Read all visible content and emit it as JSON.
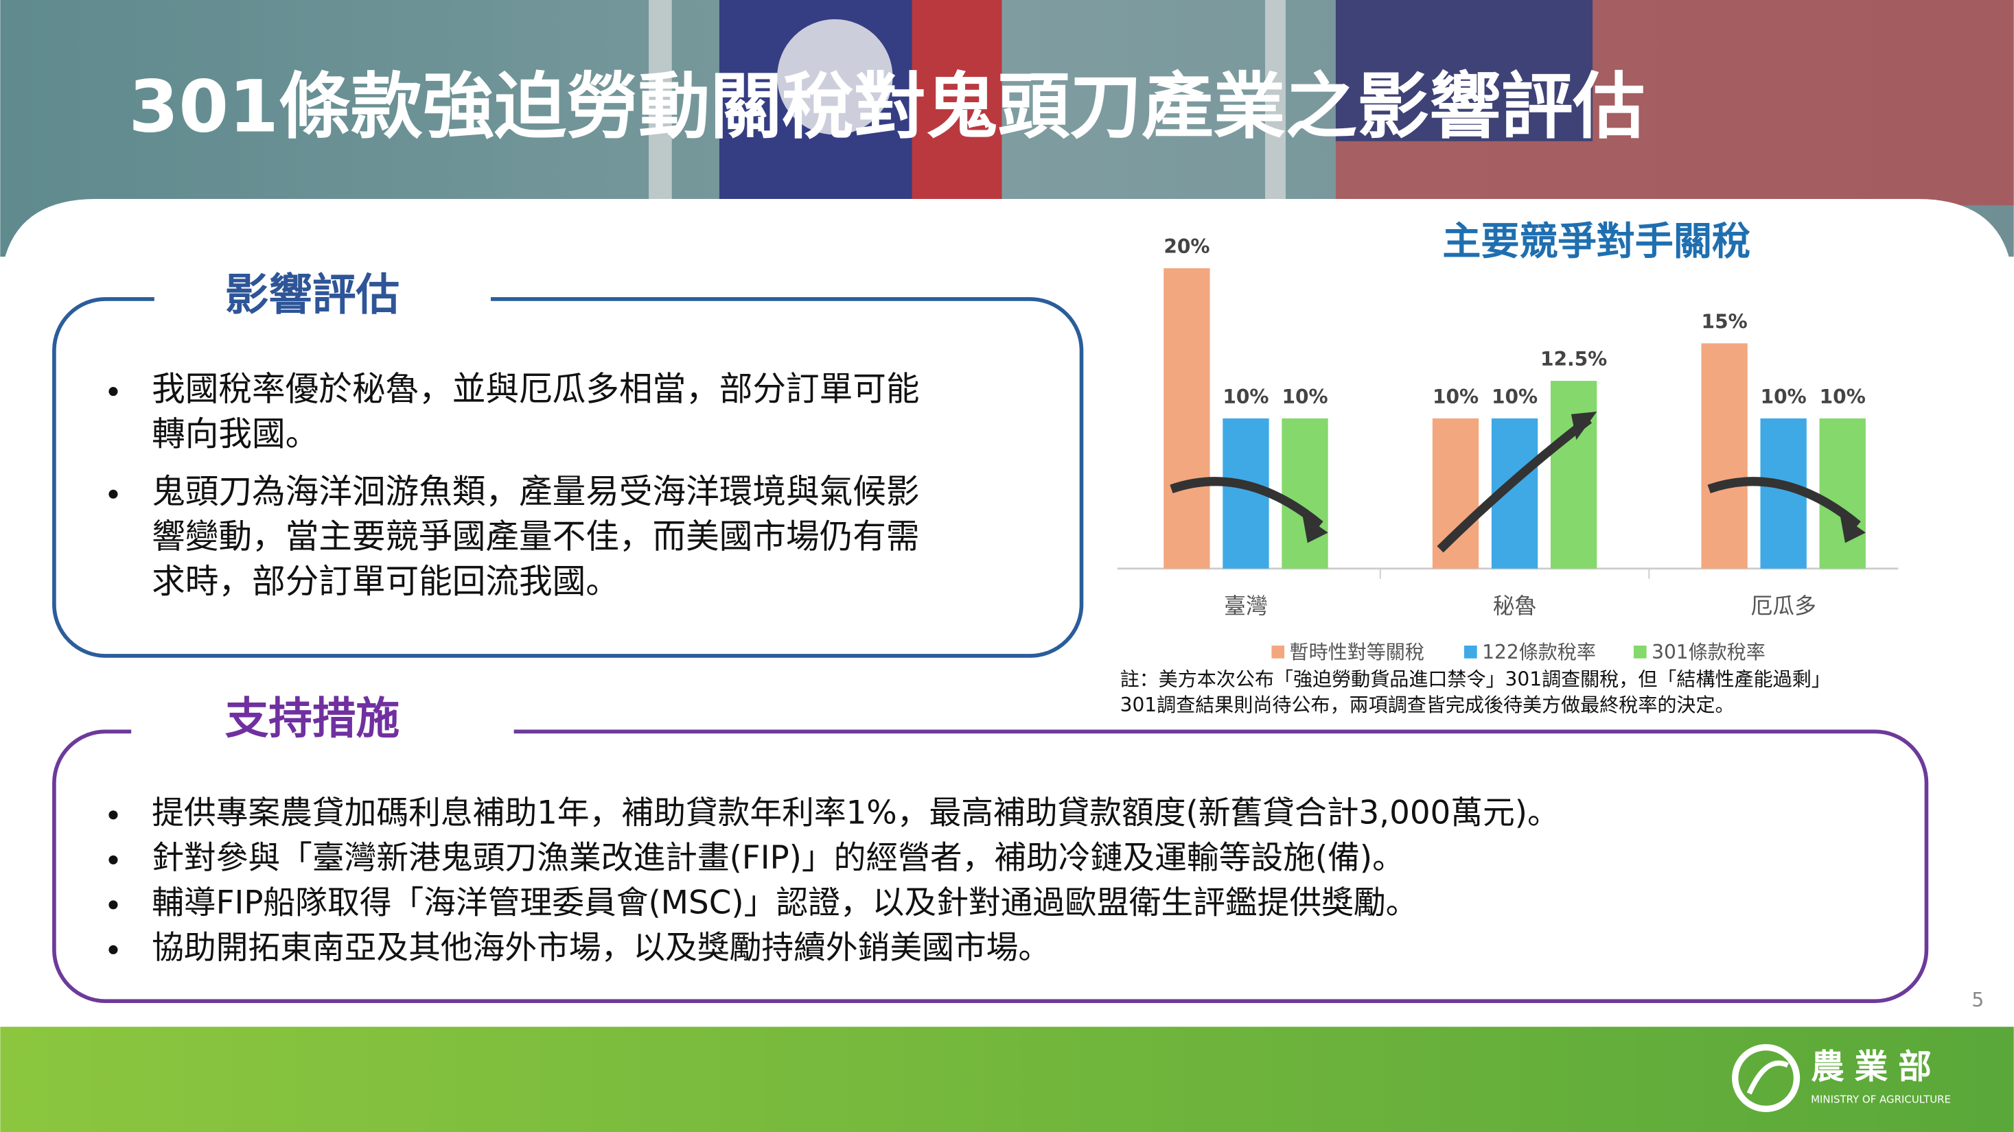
{
  "title": "301條款強迫勞動關稅對鬼頭刀產業之影響評估",
  "impact": {
    "heading": "影響評估",
    "bullets": [
      [
        "我國稅率優於秘魯，並與厄瓜多相當，部分訂單可能",
        "轉向我國。"
      ],
      [
        "鬼頭刀為海洋洄游魚類，產量易受海洋環境與氣候影",
        "響變動，當主要競爭國產量不佳，而美國市場仍有需",
        "求時，部分訂單可能回流我國。"
      ]
    ]
  },
  "support": {
    "heading": "支持措施",
    "bullets": [
      "提供專案農貸加碼利息補助1年，補助貸款年利率1%，最高補助貸款額度(新舊貸合計3,000萬元)。",
      "針對參與「臺灣新港鬼頭刀漁業改進計畫(FIP)」的經營者，補助冷鏈及運輸等設施(備)。",
      "輔導FIP船隊取得「海洋管理委員會(MSC)」認證，以及針對通過歐盟衛生評鑑提供獎勵。",
      "協助開拓東南亞及其他海外市場，以及獎勵持續外銷美國市場。"
    ]
  },
  "chart_data": {
    "type": "bar",
    "title": "主要競爭對手關稅",
    "categories": [
      "臺灣",
      "秘魯",
      "厄瓜多"
    ],
    "series": [
      {
        "name": "暫時性對等關稅",
        "color": "#f3a77f",
        "values": [
          20,
          10,
          15
        ],
        "value_labels": [
          "20%",
          "10%",
          "15%"
        ]
      },
      {
        "name": "122條款稅率",
        "color": "#3fa9e6",
        "values": [
          10,
          10,
          10
        ],
        "value_labels": [
          "10%",
          "10%",
          "10%"
        ]
      },
      {
        "name": "301條款稅率",
        "color": "#84d86c",
        "values": [
          10,
          12.5,
          10
        ],
        "value_labels": [
          "10%",
          "12.5%",
          "10%"
        ]
      }
    ]
  },
  "note": [
    "註：美方本次公布「強迫勞動貨品進口禁令」301調查關稅，但「結構性產能過剩」",
    "301調查結果則尚待公布，兩項調查皆完成後待美方做最終稅率的決定。"
  ],
  "page_number": "5",
  "logo": {
    "name": "農業部",
    "subtitle": "MINISTRY OF AGRICULTURE"
  }
}
